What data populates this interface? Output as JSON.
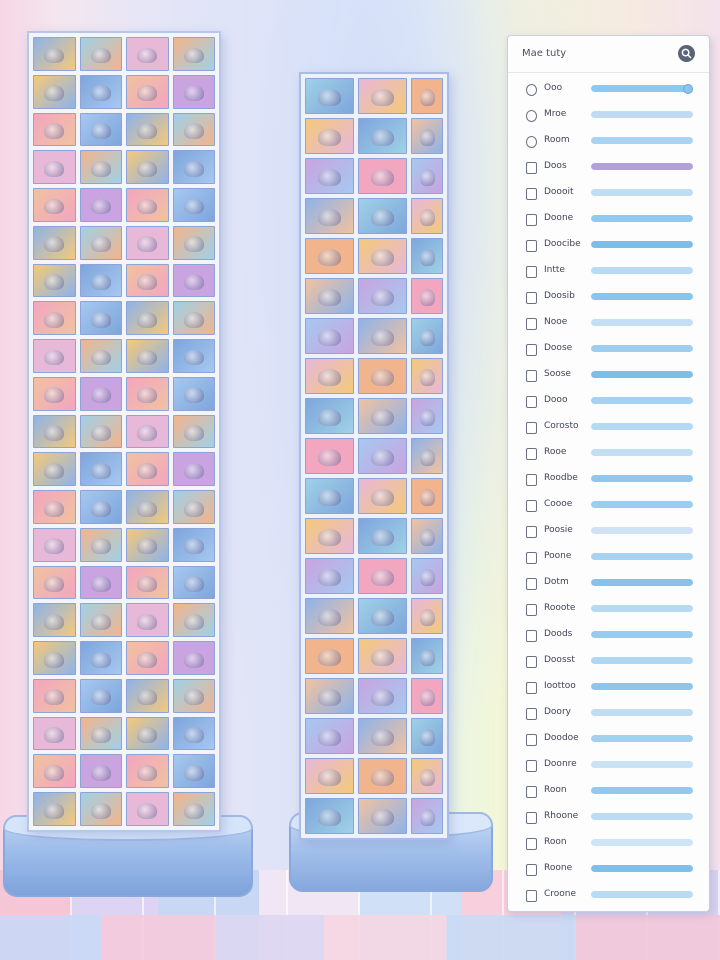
{
  "panel": {
    "title": "Mae tuty",
    "search_icon": "search-icon",
    "accent": "#8ec8ee",
    "rows": [
      {
        "label": "Ooo",
        "icon": "radio-icon",
        "level": 0.95,
        "color": "#8ec8ee"
      },
      {
        "label": "Mroe",
        "icon": "info-icon",
        "level": 1.0,
        "color": "#bfdaf2"
      },
      {
        "label": "Room",
        "icon": "clock-icon",
        "level": 1.0,
        "color": "#a9d3f0"
      },
      {
        "label": "Doos",
        "icon": "checkbox-icon",
        "level": 1.0,
        "color": "#b3a0d9"
      },
      {
        "label": "Doooit",
        "icon": "checkbox-icon",
        "level": 1.0,
        "color": "#c0def3"
      },
      {
        "label": "Doone",
        "icon": "checkbox-icon",
        "level": 1.0,
        "color": "#92c9ee"
      },
      {
        "label": "Doocibe",
        "icon": "checkbox-icon",
        "level": 1.0,
        "color": "#7fbde9"
      },
      {
        "label": "Intte",
        "icon": "checkbox-icon",
        "level": 1.0,
        "color": "#b8dbf3"
      },
      {
        "label": "Doosib",
        "icon": "checkbox-icon",
        "level": 1.0,
        "color": "#88c4ec"
      },
      {
        "label": "Nooe",
        "icon": "checkbox-icon",
        "level": 1.0,
        "color": "#c4dff3"
      },
      {
        "label": "Doose",
        "icon": "checkbox-icon",
        "level": 1.0,
        "color": "#9ecdef"
      },
      {
        "label": "Soose",
        "icon": "checkbox-icon",
        "level": 1.0,
        "color": "#7fbde9"
      },
      {
        "label": "Dooo",
        "icon": "checkbox-icon",
        "level": 1.0,
        "color": "#a6d1f0"
      },
      {
        "label": "Corosto",
        "icon": "checkbox-icon",
        "level": 1.0,
        "color": "#b5d9f2"
      },
      {
        "label": "Rooe",
        "icon": "checkbox-icon",
        "level": 1.0,
        "color": "#c2def3"
      },
      {
        "label": "Roodbe",
        "icon": "checkbox-icon",
        "level": 1.0,
        "color": "#8fc7ed"
      },
      {
        "label": "Coooe",
        "icon": "checkbox-icon",
        "level": 1.0,
        "color": "#9ccdef"
      },
      {
        "label": "Poosie",
        "icon": "checkbox-icon",
        "level": 1.0,
        "color": "#cfe3f4"
      },
      {
        "label": "Poone",
        "icon": "checkbox-icon",
        "level": 1.0,
        "color": "#a8d3f0"
      },
      {
        "label": "Dotm",
        "icon": "checkbox-icon",
        "level": 1.0,
        "color": "#86c3ec"
      },
      {
        "label": "Rooote",
        "icon": "checkbox-icon",
        "level": 1.0,
        "color": "#b6daf2"
      },
      {
        "label": "Doods",
        "icon": "checkbox-icon",
        "level": 1.0,
        "color": "#9acbef"
      },
      {
        "label": "Doosst",
        "icon": "checkbox-icon",
        "level": 1.0,
        "color": "#b0d7f1"
      },
      {
        "label": "Ioottoo",
        "icon": "checkbox-icon",
        "level": 1.0,
        "color": "#8cc6ed"
      },
      {
        "label": "Doory",
        "icon": "checkbox-icon",
        "level": 1.0,
        "color": "#c0ddf3"
      },
      {
        "label": "Doodoe",
        "icon": "checkbox-icon",
        "level": 1.0,
        "color": "#a4d0f0"
      },
      {
        "label": "Doonre",
        "icon": "checkbox-icon",
        "level": 1.0,
        "color": "#c9e2f4"
      },
      {
        "label": "Roon",
        "icon": "checkbox-icon",
        "level": 1.0,
        "color": "#93c9ee"
      },
      {
        "label": "Rhoone",
        "icon": "checkbox-icon",
        "level": 1.0,
        "color": "#bcdcf3"
      },
      {
        "label": "Roon",
        "icon": "checkbox-icon",
        "level": 1.0,
        "color": "#cfe4f5"
      },
      {
        "label": "Roone",
        "icon": "checkbox-icon",
        "level": 1.0,
        "color": "#80bfe9"
      },
      {
        "label": "Croone",
        "icon": "checkbox-icon",
        "level": 1.0,
        "color": "#b9dbf2"
      }
    ]
  },
  "tile_palette": [
    "#f2b48c",
    "#8fb3e8",
    "#c9a4e0",
    "#f3c97a",
    "#9fd1e6",
    "#f3a6c0",
    "#7ea6dc",
    "#e7b8d8",
    "#a6c8f0",
    "#f0c2a0"
  ]
}
